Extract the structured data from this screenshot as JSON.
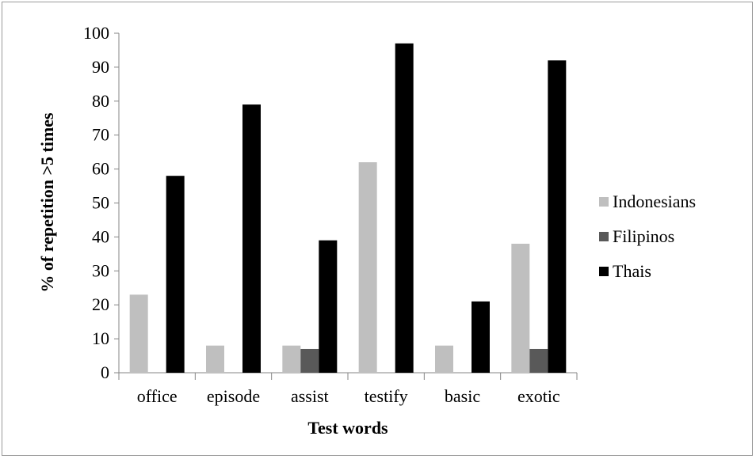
{
  "chart_data": {
    "type": "bar",
    "categories": [
      "office",
      "episode",
      "assist",
      "testify",
      "basic",
      "exotic"
    ],
    "series": [
      {
        "name": "Indonesians",
        "color": "#bfbfbf",
        "values": [
          23,
          8,
          8,
          62,
          8,
          38
        ]
      },
      {
        "name": "Filipinos",
        "color": "#595959",
        "values": [
          0,
          0,
          7,
          0,
          0,
          7
        ]
      },
      {
        "name": "Thais",
        "color": "#000000",
        "values": [
          58,
          79,
          39,
          97,
          21,
          92
        ]
      }
    ],
    "xlabel": "Test words",
    "ylabel": "% of repetition >5 times",
    "ylim": [
      0,
      100
    ],
    "yticks": [
      0,
      10,
      20,
      30,
      40,
      50,
      60,
      70,
      80,
      90,
      100
    ],
    "grid": false,
    "legend_position": "right"
  }
}
